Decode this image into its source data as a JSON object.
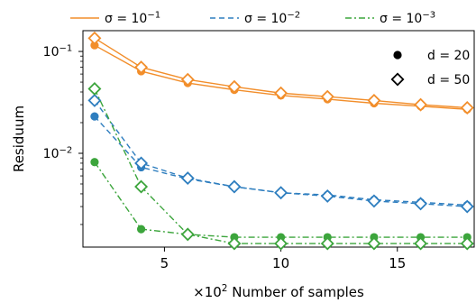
{
  "chart_data": {
    "type": "line",
    "title": "",
    "xlabel": "×10² Number of samples",
    "ylabel": "Residuum",
    "yscale": "log",
    "xlim": [
      1.5,
      18.3
    ],
    "ylim": [
      0.0012,
      0.16
    ],
    "grid": false,
    "legend_placement": "top",
    "x_ticks": [
      {
        "value": 5,
        "label": "5"
      },
      {
        "value": 10,
        "label": "10"
      },
      {
        "value": 15,
        "label": "15"
      }
    ],
    "y_ticks": [
      {
        "value": 0.1,
        "base": "10",
        "exp": "−1"
      },
      {
        "value": 0.01,
        "base": "10",
        "exp": "−2"
      }
    ],
    "x": [
      2,
      4,
      6,
      8,
      10,
      12,
      14,
      16,
      18
    ],
    "series": [
      {
        "name_base": "σ = 10",
        "name_exp": "−1",
        "color": "#f28e2b",
        "dash": "solid",
        "d": "20",
        "values": [
          0.115,
          0.064,
          0.049,
          0.042,
          0.037,
          0.034,
          0.031,
          0.029,
          0.027
        ]
      },
      {
        "name_base": "σ = 10",
        "name_exp": "−1",
        "color": "#f28e2b",
        "dash": "solid",
        "d": "50",
        "values": [
          0.135,
          0.07,
          0.053,
          0.045,
          0.039,
          0.036,
          0.033,
          0.03,
          0.028
        ]
      },
      {
        "name_base": "σ = 10",
        "name_exp": "−2",
        "color": "#2e7ebf",
        "dash": "dashed",
        "d": "20",
        "values": [
          0.023,
          0.0073,
          0.0056,
          0.0047,
          0.0041,
          0.0039,
          0.0035,
          0.0033,
          0.0031
        ]
      },
      {
        "name_base": "σ = 10",
        "name_exp": "−2",
        "color": "#2e7ebf",
        "dash": "dashed",
        "d": "50",
        "values": [
          0.033,
          0.008,
          0.0057,
          0.0047,
          0.0041,
          0.0038,
          0.0034,
          0.0032,
          0.003
        ]
      },
      {
        "name_base": "σ = 10",
        "name_exp": "−3",
        "color": "#3ca53c",
        "dash": "dashdot",
        "d": "20",
        "values": [
          0.0082,
          0.0018,
          0.0016,
          0.0015,
          0.0015,
          0.0015,
          0.0015,
          0.0015,
          0.0015
        ]
      },
      {
        "name_base": "σ = 10",
        "name_exp": "−3",
        "color": "#3ca53c",
        "dash": "dashdot",
        "d": "50",
        "values": [
          0.043,
          0.0047,
          0.0016,
          0.0013,
          0.0013,
          0.0013,
          0.0013,
          0.0013,
          0.0013
        ]
      }
    ],
    "legend_noise": [
      {
        "base": "σ = 10",
        "exp": "−1",
        "color": "#f28e2b",
        "dash": "solid"
      },
      {
        "base": "σ = 10",
        "exp": "−2",
        "color": "#2e7ebf",
        "dash": "dashed"
      },
      {
        "base": "σ = 10",
        "exp": "−3",
        "color": "#3ca53c",
        "dash": "dashdot"
      }
    ],
    "legend_markers": [
      {
        "marker": "circle",
        "label": "d = 20"
      },
      {
        "marker": "diamond",
        "label": "d = 50"
      }
    ]
  }
}
